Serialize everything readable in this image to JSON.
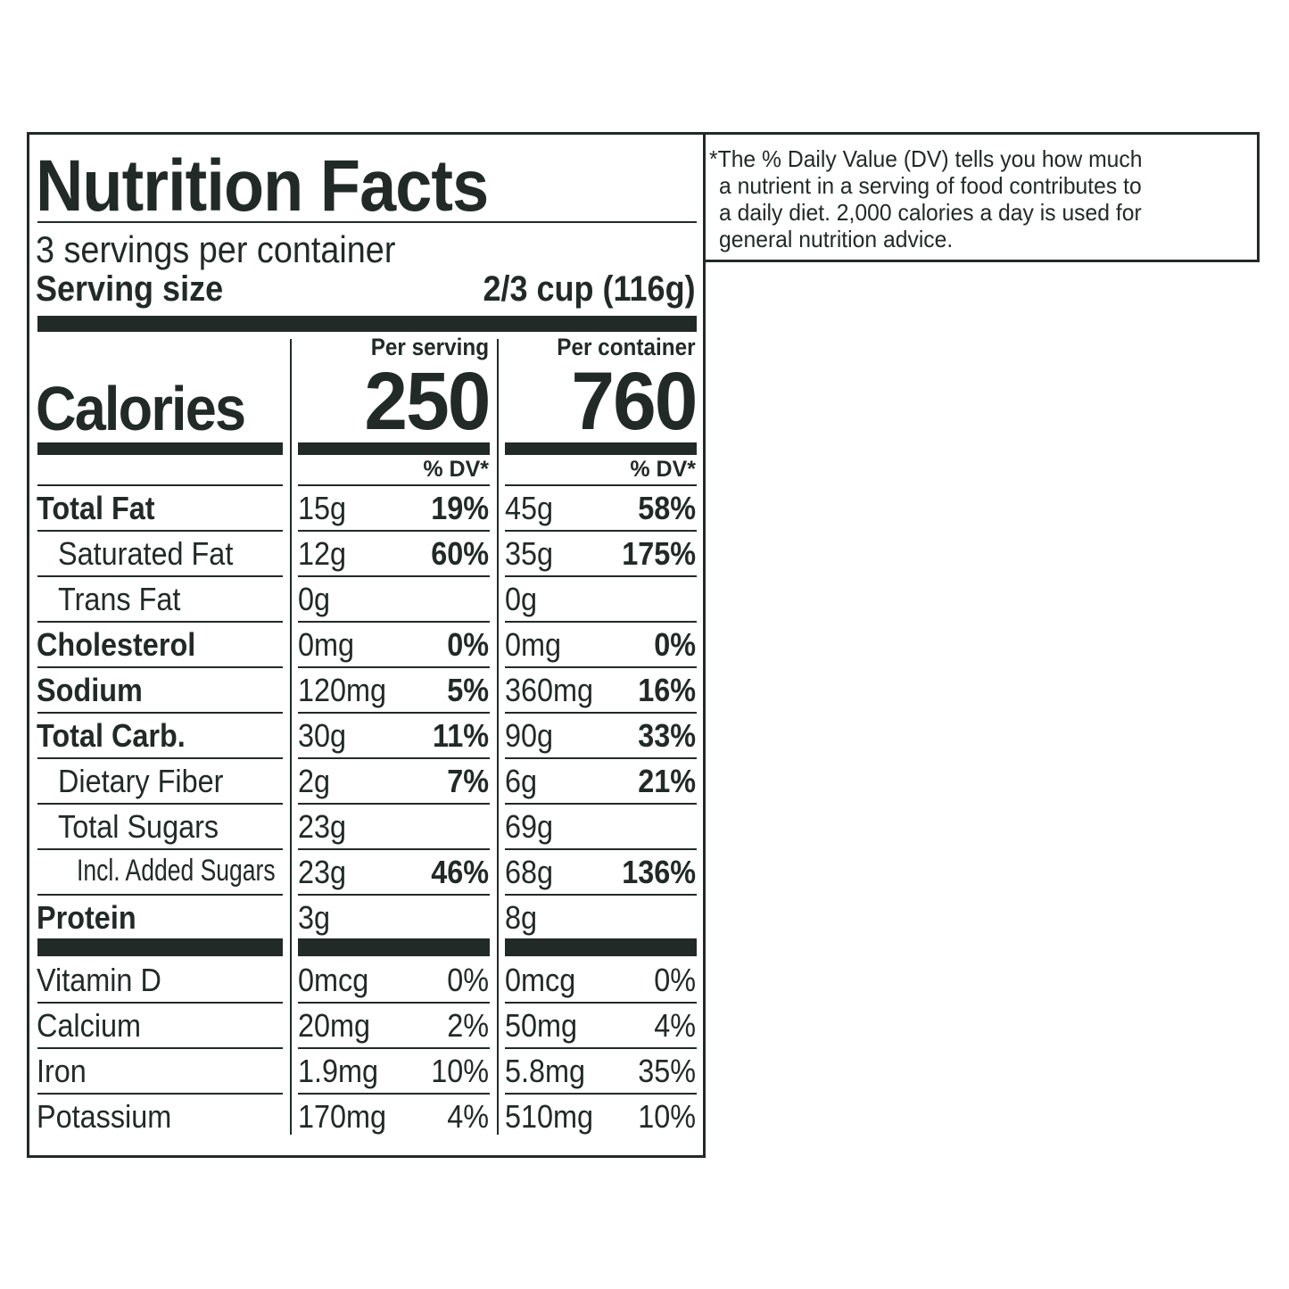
{
  "title": "Nutrition Facts",
  "servings_per_container": "3 servings per container",
  "serving_size_label": "Serving size",
  "serving_size_value": "2/3 cup (116g)",
  "columns": {
    "per_serving": "Per serving",
    "per_container": "Per container",
    "dv_header": "% DV*"
  },
  "calories": {
    "label": "Calories",
    "per_serving": "250",
    "per_container": "760"
  },
  "rows": [
    {
      "label": "Total Fat",
      "style": "bold",
      "serving": "15g",
      "serving_dv": "19%",
      "container": "45g",
      "container_dv": "58%",
      "dv_bold": true
    },
    {
      "label": "Saturated Fat",
      "style": "indent",
      "serving": "12g",
      "serving_dv": "60%",
      "container": "35g",
      "container_dv": "175%",
      "dv_bold": true
    },
    {
      "label": "Trans Fat",
      "style": "indent",
      "serving": "0g",
      "serving_dv": "",
      "container": "0g",
      "container_dv": "",
      "dv_bold": true
    },
    {
      "label": "Cholesterol",
      "style": "bold",
      "serving": "0mg",
      "serving_dv": "0%",
      "container": "0mg",
      "container_dv": "0%",
      "dv_bold": true
    },
    {
      "label": "Sodium",
      "style": "bold",
      "serving": "120mg",
      "serving_dv": "5%",
      "container": "360mg",
      "container_dv": "16%",
      "dv_bold": true
    },
    {
      "label": "Total Carb.",
      "style": "bold",
      "serving": "30g",
      "serving_dv": "11%",
      "container": "90g",
      "container_dv": "33%",
      "dv_bold": true
    },
    {
      "label": "Dietary Fiber",
      "style": "indent",
      "serving": "2g",
      "serving_dv": "7%",
      "container": "6g",
      "container_dv": "21%",
      "dv_bold": true
    },
    {
      "label": "Total Sugars",
      "style": "indent",
      "serving": "23g",
      "serving_dv": "",
      "container": "69g",
      "container_dv": "",
      "dv_bold": true
    },
    {
      "label": "Incl. Added Sugars",
      "style": "indent2",
      "serving": "23g",
      "serving_dv": "46%",
      "container": "68g",
      "container_dv": "136%",
      "dv_bold": true
    },
    {
      "label": "Protein",
      "style": "bold",
      "serving": "3g",
      "serving_dv": "",
      "container": "8g",
      "container_dv": "",
      "dv_bold": true
    },
    {
      "label": "Vitamin D",
      "style": "plain",
      "serving": "0mcg",
      "serving_dv": "0%",
      "container": "0mcg",
      "container_dv": "0%",
      "dv_bold": false
    },
    {
      "label": "Calcium",
      "style": "plain",
      "serving": "20mg",
      "serving_dv": "2%",
      "container": "50mg",
      "container_dv": "4%",
      "dv_bold": false
    },
    {
      "label": "Iron",
      "style": "plain",
      "serving": "1.9mg",
      "serving_dv": "10%",
      "container": "5.8mg",
      "container_dv": "35%",
      "dv_bold": false
    },
    {
      "label": "Potassium",
      "style": "plain",
      "serving": "170mg",
      "serving_dv": "4%",
      "container": "510mg",
      "container_dv": "10%",
      "dv_bold": false
    }
  ],
  "footnote": [
    "*The % Daily Value (DV) tells you how much",
    "a nutrient in a serving of food contributes to",
    "a daily diet. 2,000 calories a day is used for",
    "general nutrition advice."
  ],
  "colors": {
    "ink": "#222a28",
    "background": "#ffffff"
  }
}
